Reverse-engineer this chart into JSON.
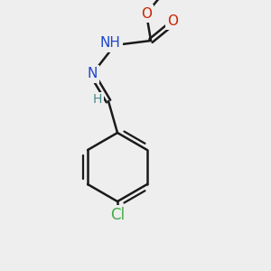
{
  "background_color": "#eeeeee",
  "bond_color": "#1a1a1a",
  "bond_width": 1.8,
  "atom_colors": {
    "N": "#1e44cc",
    "O": "#cc2200",
    "Cl": "#44aa44",
    "H": "#4a8a8a",
    "C": "#1a1a1a"
  },
  "font_size": 11,
  "font_size_small": 9
}
